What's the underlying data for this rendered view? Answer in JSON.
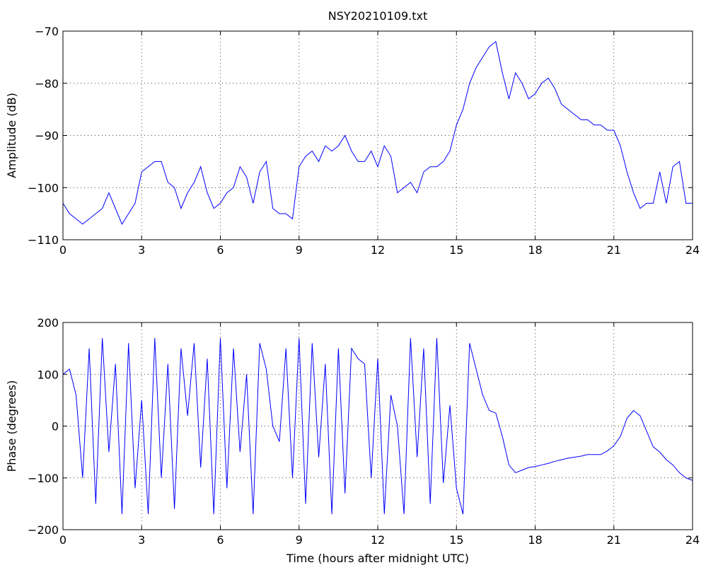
{
  "chart_data": [
    {
      "type": "line",
      "title": "NSY20210109.txt",
      "ylabel": "Amplitude (dB)",
      "grid": true,
      "xlim": [
        0,
        24
      ],
      "xticks": [
        0,
        3,
        6,
        9,
        12,
        15,
        18,
        21,
        24
      ],
      "ylim": [
        -110,
        -70
      ],
      "yticks": [
        {
          "value": -110,
          "label": "−110"
        },
        {
          "value": -100,
          "label": "−100"
        },
        {
          "value": -90,
          "label": "−90"
        },
        {
          "value": -80,
          "label": "−80"
        },
        {
          "value": -70,
          "label": "−70"
        }
      ],
      "x": [
        0,
        0.25,
        0.5,
        0.75,
        1,
        1.25,
        1.5,
        1.75,
        2,
        2.25,
        2.5,
        2.75,
        3,
        3.25,
        3.5,
        3.75,
        4,
        4.25,
        4.5,
        4.75,
        5,
        5.25,
        5.5,
        5.75,
        6,
        6.25,
        6.5,
        6.75,
        7,
        7.25,
        7.5,
        7.75,
        8,
        8.25,
        8.5,
        8.75,
        9,
        9.25,
        9.5,
        9.75,
        10,
        10.25,
        10.5,
        10.75,
        11,
        11.25,
        11.5,
        11.75,
        12,
        12.25,
        12.5,
        12.75,
        13,
        13.25,
        13.5,
        13.75,
        14,
        14.25,
        14.5,
        14.75,
        15,
        15.25,
        15.5,
        15.75,
        16,
        16.25,
        16.5,
        16.75,
        17,
        17.25,
        17.5,
        17.75,
        18,
        18.25,
        18.5,
        18.75,
        19,
        19.25,
        19.5,
        19.75,
        20,
        20.25,
        20.5,
        20.75,
        21,
        21.25,
        21.5,
        21.75,
        22,
        22.25,
        22.5,
        22.75,
        23,
        23.25,
        23.5,
        23.75,
        24
      ],
      "series": [
        {
          "color": "#0000ff",
          "values": [
            -103,
            -105,
            -106,
            -107,
            -106,
            -105,
            -104,
            -101,
            -104,
            -107,
            -105,
            -103,
            -97,
            -96,
            -95,
            -95,
            -99,
            -100,
            -104,
            -101,
            -99,
            -96,
            -101,
            -104,
            -103,
            -101,
            -100,
            -96,
            -98,
            -103,
            -97,
            -95,
            -104,
            -105,
            -105,
            -106,
            -96,
            -94,
            -93,
            -95,
            -92,
            -93,
            -92,
            -90,
            -93,
            -95,
            -95,
            -93,
            -96,
            -92,
            -94,
            -101,
            -100,
            -99,
            -101,
            -97,
            -96,
            -96,
            -95,
            -93,
            -88,
            -85,
            -80,
            -77,
            -75,
            -73,
            -72,
            -78,
            -83,
            -78,
            -80,
            -83,
            -82,
            -80,
            -79,
            -81,
            -84,
            -85,
            -86,
            -87,
            -87,
            -88,
            -88,
            -89,
            -89,
            -92,
            -97,
            -101,
            -104,
            -103,
            -103,
            -97,
            -103,
            -96,
            -95,
            -103,
            -103
          ]
        }
      ]
    },
    {
      "type": "line",
      "ylabel": "Phase (degrees)",
      "xlabel": "Time (hours after midnight UTC)",
      "grid": true,
      "xlim": [
        0,
        24
      ],
      "xticks": [
        0,
        3,
        6,
        9,
        12,
        15,
        18,
        21,
        24
      ],
      "ylim": [
        -200,
        200
      ],
      "yticks": [
        {
          "value": -200,
          "label": "−200"
        },
        {
          "value": -100,
          "label": "−100"
        },
        0,
        100,
        200
      ],
      "x": [
        0,
        0.25,
        0.5,
        0.75,
        1,
        1.25,
        1.5,
        1.75,
        2,
        2.25,
        2.5,
        2.75,
        3,
        3.25,
        3.5,
        3.75,
        4,
        4.25,
        4.5,
        4.75,
        5,
        5.25,
        5.5,
        5.75,
        6,
        6.25,
        6.5,
        6.75,
        7,
        7.25,
        7.5,
        7.75,
        8,
        8.25,
        8.5,
        8.75,
        9,
        9.25,
        9.5,
        9.75,
        10,
        10.25,
        10.5,
        10.75,
        11,
        11.25,
        11.5,
        11.75,
        12,
        12.25,
        12.5,
        12.75,
        13,
        13.25,
        13.5,
        13.75,
        14,
        14.25,
        14.5,
        14.75,
        15,
        15.25,
        15.5,
        15.75,
        16,
        16.25,
        16.5,
        16.75,
        17,
        17.25,
        17.5,
        17.75,
        18,
        18.25,
        18.5,
        18.75,
        19,
        19.25,
        19.5,
        19.75,
        20,
        20.25,
        20.5,
        20.75,
        21,
        21.25,
        21.5,
        21.75,
        22,
        22.25,
        22.5,
        22.75,
        23,
        23.25,
        23.5,
        23.75,
        24
      ],
      "series": [
        {
          "color": "#0000ff",
          "values": [
            100,
            110,
            60,
            -100,
            150,
            -150,
            170,
            -50,
            120,
            -170,
            160,
            -120,
            50,
            -170,
            170,
            -100,
            120,
            -160,
            150,
            20,
            160,
            -80,
            130,
            -170,
            170,
            -120,
            150,
            -50,
            100,
            -170,
            160,
            110,
            0,
            -30,
            150,
            -100,
            170,
            -150,
            160,
            -60,
            120,
            -170,
            150,
            -130,
            150,
            130,
            120,
            -100,
            130,
            -170,
            60,
            0,
            -170,
            170,
            -60,
            150,
            -150,
            170,
            -110,
            40,
            -120,
            -170,
            160,
            110,
            60,
            30,
            25,
            -20,
            -75,
            -90,
            -85,
            -80,
            -78,
            -75,
            -72,
            -68,
            -65,
            -62,
            -60,
            -58,
            -55,
            -55,
            -55,
            -48,
            -38,
            -20,
            15,
            30,
            20,
            -10,
            -40,
            -50,
            -65,
            -75,
            -90,
            -100,
            -105
          ]
        }
      ]
    }
  ]
}
